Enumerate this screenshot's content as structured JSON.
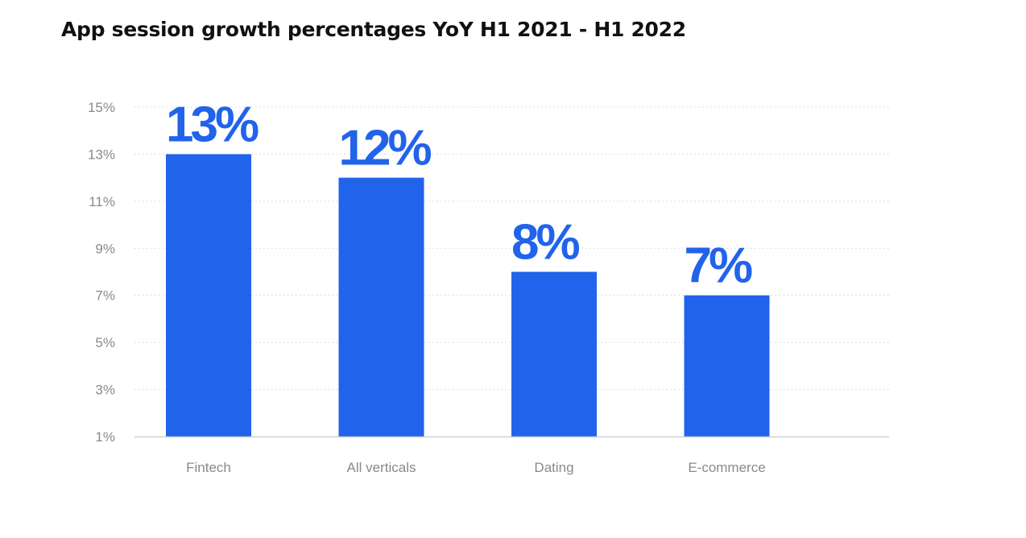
{
  "chart_data": {
    "type": "bar",
    "title": "App session growth percentages YoY H1 2021 - H1 2022",
    "xlabel": "",
    "ylabel": "",
    "categories": [
      "Fintech",
      "All verticals",
      "Dating",
      "E-commerce"
    ],
    "values": [
      13,
      12,
      8,
      7
    ],
    "data_labels": [
      "13%",
      "12%",
      "8%",
      "7%"
    ],
    "ylim": [
      1,
      15
    ],
    "yticks": [
      1,
      3,
      5,
      7,
      9,
      11,
      13,
      15
    ],
    "ytick_labels": [
      "1%",
      "3%",
      "5%",
      "7%",
      "9%",
      "11%",
      "13%",
      "15%"
    ],
    "grid": true,
    "legend": "none",
    "bar_color": "#2163EB"
  }
}
